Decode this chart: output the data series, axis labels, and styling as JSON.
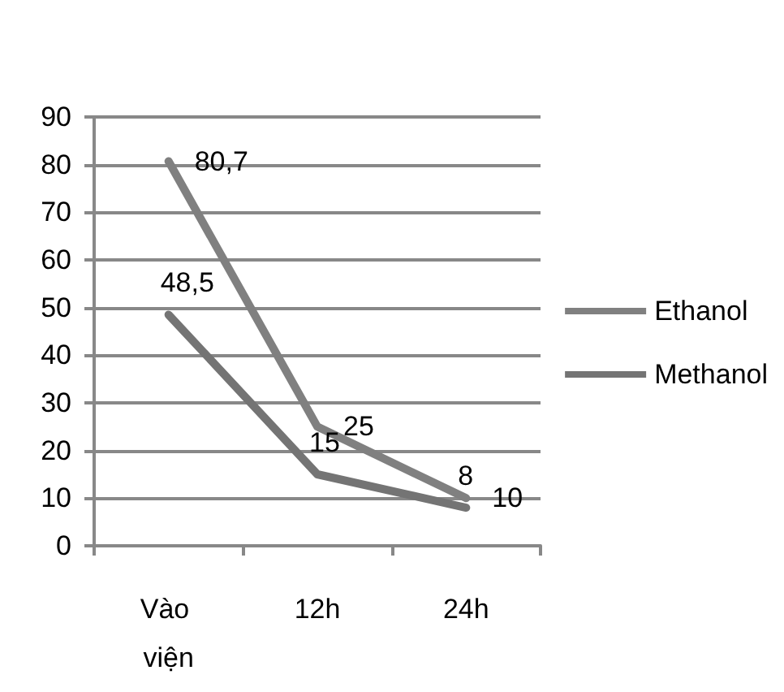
{
  "chart_data": {
    "type": "line",
    "categories": [
      "Vào viện",
      "12h",
      "24h"
    ],
    "series": [
      {
        "name": "Ethanol",
        "color": "#808080",
        "values": [
          80.7,
          25,
          10
        ],
        "value_labels": [
          "80,7",
          "25",
          "10"
        ]
      },
      {
        "name": "Methanol",
        "color": "#747474",
        "values": [
          48.5,
          15,
          8
        ],
        "value_labels": [
          "48,5",
          "15",
          "8"
        ]
      }
    ],
    "ylim": [
      0,
      90
    ],
    "yticks": [
      0,
      10,
      20,
      30,
      40,
      50,
      60,
      70,
      80,
      90
    ],
    "grid": "y",
    "legend": "right",
    "marker": "none",
    "line_style": "solid"
  }
}
